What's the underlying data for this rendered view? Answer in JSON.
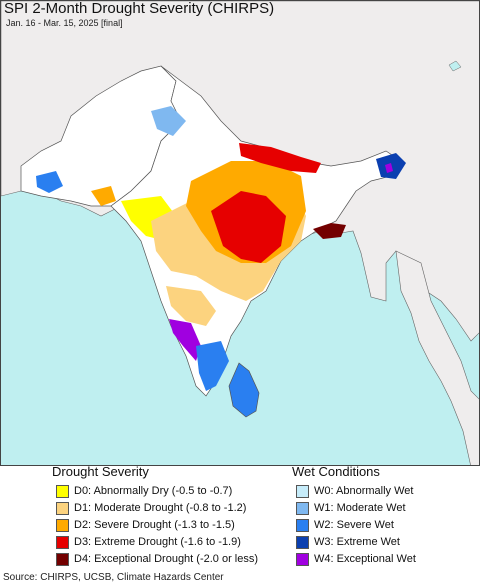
{
  "title": "SPI 2-Month Drought Severity (CHIRPS)",
  "subtitle": "Jan. 16 - Mar. 15, 2025 [final]",
  "legend": {
    "drought_title": "Drought Severity",
    "wet_title": "Wet Conditions",
    "drought_items": [
      {
        "label": "D0: Abnormally Dry (-0.5 to -0.7)",
        "color": "#ffff00"
      },
      {
        "label": "D1: Moderate Drought (-0.8 to -1.2)",
        "color": "#fcd37f"
      },
      {
        "label": "D2: Severe Drought (-1.3 to -1.5)",
        "color": "#ffaa00"
      },
      {
        "label": "D3: Extreme Drought (-1.6 to -1.9)",
        "color": "#e60000"
      },
      {
        "label": "D4: Exceptional Drought (-2.0 or less)",
        "color": "#730000"
      }
    ],
    "wet_items": [
      {
        "label": "W0: Abnormally Wet",
        "color": "#c6ecfa"
      },
      {
        "label": "W1: Moderate Wet",
        "color": "#7fb8f0"
      },
      {
        "label": "W2: Severe Wet",
        "color": "#2a7ff0"
      },
      {
        "label": "W3: Extreme Wet",
        "color": "#0b3fb0"
      },
      {
        "label": "W4: Exceptional Wet",
        "color": "#a000e0"
      }
    ]
  },
  "source": "Source: CHIRPS, UCSB, Climate Hazards Center",
  "colors": {
    "ocean": "#bfeff0",
    "land_outside": "#efeded",
    "land_normal": "#ffffff",
    "border": "#555555"
  }
}
